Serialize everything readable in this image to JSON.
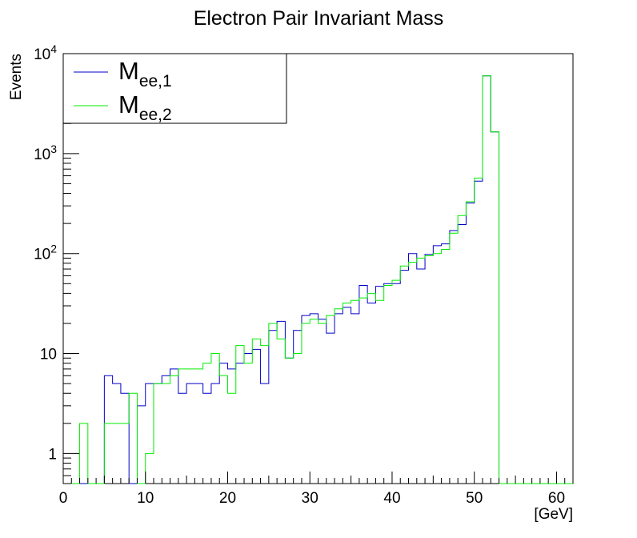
{
  "chart_data": {
    "type": "step-histogram",
    "title": "Electron Pair Invariant Mass",
    "xlabel": "[GeV]",
    "ylabel": "Events",
    "xlim": [
      0,
      62
    ],
    "ylim": [
      0.5,
      10000
    ],
    "yscale": "log",
    "bin_width": 1,
    "xticks": [
      "0",
      "10",
      "20",
      "30",
      "40",
      "50",
      "60"
    ],
    "yticks": [
      {
        "value": 1,
        "base": "1",
        "exp": ""
      },
      {
        "value": 10,
        "base": "10",
        "exp": ""
      },
      {
        "value": 100,
        "base": "10",
        "exp": "2"
      },
      {
        "value": 1000,
        "base": "10",
        "exp": "3"
      },
      {
        "value": 10000,
        "base": "10",
        "exp": "4"
      }
    ],
    "legend": {
      "position": "top-left",
      "entries": [
        {
          "main": "M",
          "sub": "ee,1"
        },
        {
          "main": "M",
          "sub": "ee,2"
        }
      ]
    },
    "series": [
      {
        "color": "#0000cc",
        "values": [
          0,
          0,
          0,
          0,
          0,
          6,
          5,
          4,
          0,
          3,
          5,
          5,
          6,
          7,
          4,
          5,
          5,
          4,
          5,
          8,
          7,
          8,
          10,
          11,
          5,
          17,
          21,
          9,
          17,
          24,
          25,
          22,
          16,
          25,
          29,
          25,
          48,
          32,
          47,
          50,
          50,
          68,
          100,
          70,
          98,
          120,
          125,
          170,
          195,
          320,
          530,
          6000,
          1650,
          0,
          0,
          0,
          0,
          0,
          0,
          0,
          0,
          0
        ]
      },
      {
        "color": "#00ee00",
        "values": [
          0,
          0,
          2,
          0,
          0,
          2,
          2,
          2,
          4,
          0,
          1,
          5,
          5,
          6,
          7,
          7,
          7,
          8,
          10,
          6,
          4,
          12,
          8,
          14,
          12,
          20,
          14,
          9,
          10,
          20,
          22,
          20,
          24,
          28,
          32,
          34,
          36,
          40,
          34,
          48,
          54,
          75,
          82,
          90,
          95,
          100,
          110,
          160,
          240,
          330,
          570,
          6000,
          1650,
          0,
          0,
          0,
          0,
          0,
          0,
          0,
          0,
          0
        ]
      }
    ]
  }
}
